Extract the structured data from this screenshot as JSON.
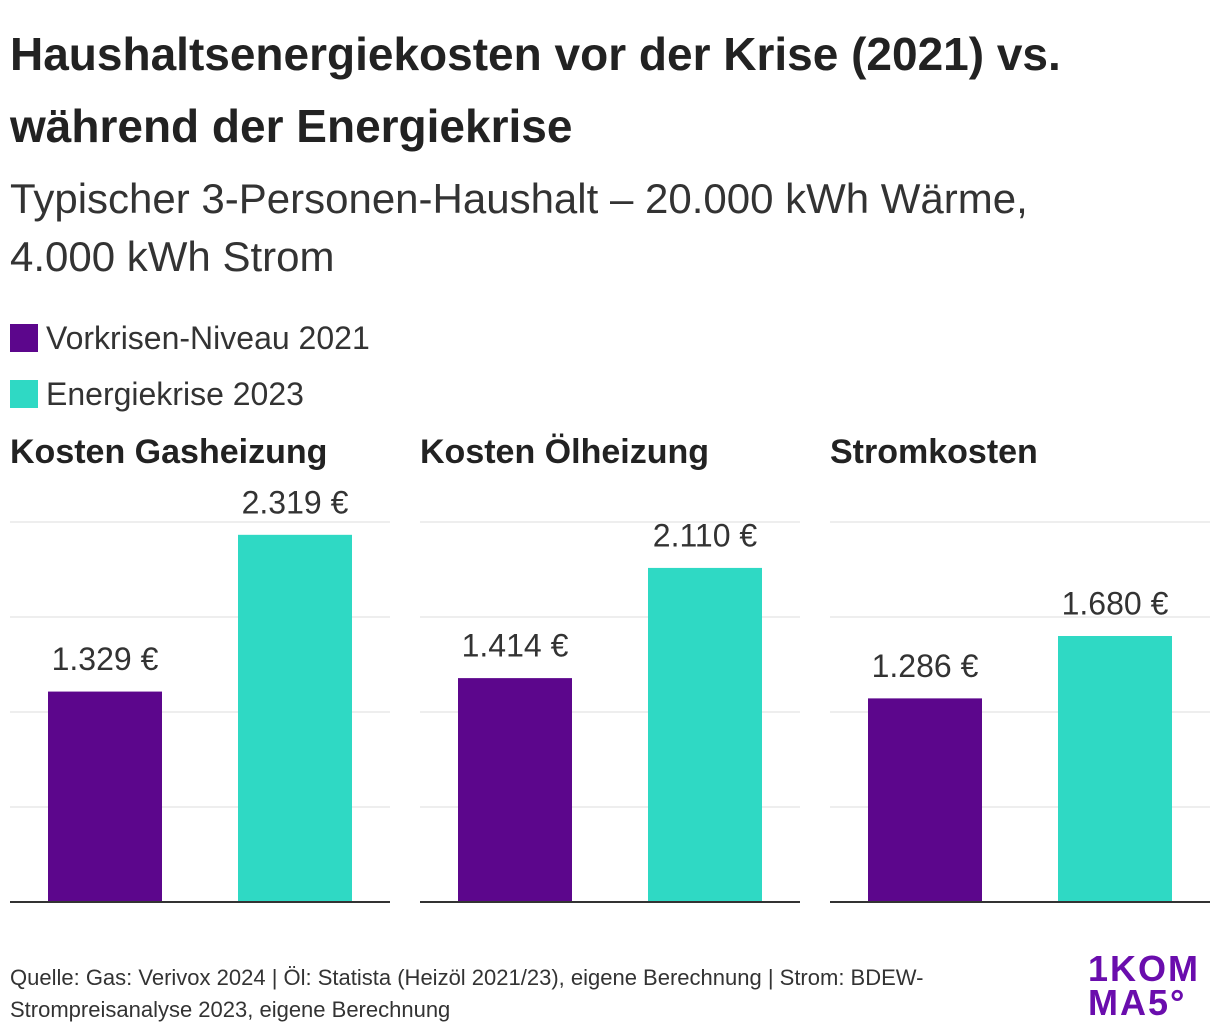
{
  "title": "Haushaltsenergiekosten vor der Krise (2021) vs. während der Energiekrise",
  "subtitle": "Typischer 3-Personen-Haushalt – 20.000 kWh Wärme, 4.000 kWh Strom",
  "series": [
    {
      "name": "Vorkrisen-Niveau 2021",
      "color": "#5c068c"
    },
    {
      "name": "Energiekrise 2023",
      "color": "#2fd9c4"
    }
  ],
  "chart_data": [
    {
      "type": "bar",
      "title": "Kosten Gasheizung",
      "values": [
        1329,
        2319
      ],
      "value_labels": [
        "1.329 €",
        "2.319 €"
      ],
      "ylim": [
        0,
        2400
      ],
      "yticks": [
        0,
        600,
        1200,
        1800,
        2400
      ],
      "grid": true
    },
    {
      "type": "bar",
      "title": "Kosten Ölheizung",
      "values": [
        1414,
        2110
      ],
      "value_labels": [
        "1.414 €",
        "2.110 €"
      ],
      "ylim": [
        0,
        2400
      ],
      "yticks": [
        0,
        600,
        1200,
        1800,
        2400
      ],
      "grid": true
    },
    {
      "type": "bar",
      "title": "Stromkosten",
      "values": [
        1286,
        1680
      ],
      "value_labels": [
        "1.286 €",
        "1.680 €"
      ],
      "ylim": [
        0,
        2400
      ],
      "yticks": [
        0,
        600,
        1200,
        1800,
        2400
      ],
      "grid": true
    }
  ],
  "source": "Quelle: Gas: Verivox 2024 | Öl: Statista (Heizöl 2021/23), eigene Berechnung | Strom: BDEW-Strompreisanalyse 2023, eigene Berechnung",
  "logo": [
    "1KOM",
    "MA5°"
  ]
}
